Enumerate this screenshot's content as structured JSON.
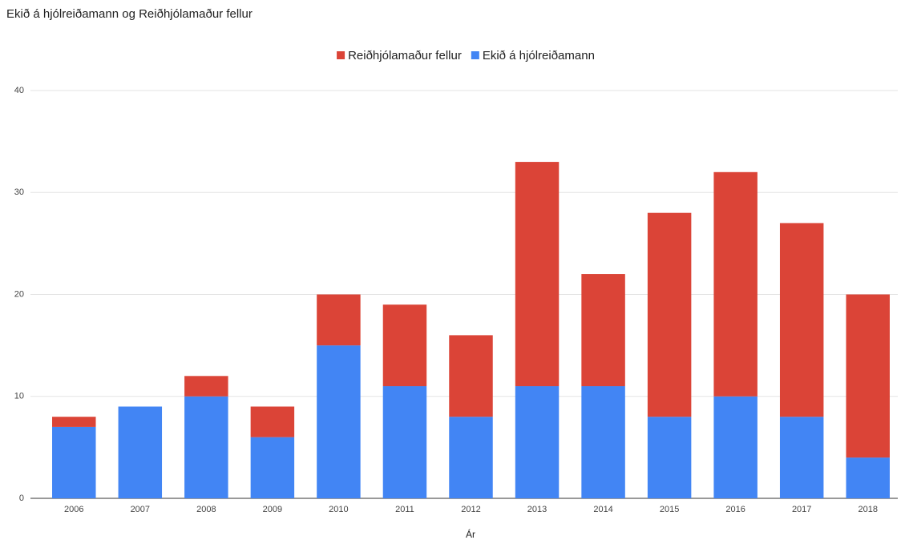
{
  "chart_data": {
    "type": "stacked_bar",
    "title": "Ekið á hjólreiðamann og Reiðhjólamaður fellur",
    "x_label": "Ár",
    "categories": [
      "2006",
      "2007",
      "2008",
      "2009",
      "2010",
      "2011",
      "2012",
      "2013",
      "2014",
      "2015",
      "2016",
      "2017",
      "2018"
    ],
    "series": [
      {
        "name": "Reiðhjólamaður fellur",
        "color": "#db4437",
        "values": [
          1,
          0,
          2,
          3,
          5,
          8,
          8,
          22,
          11,
          20,
          22,
          19,
          16
        ]
      },
      {
        "name": "Ekið á hjólreiðamann",
        "color": "#4285f4",
        "values": [
          7,
          9,
          10,
          6,
          15,
          11,
          8,
          11,
          11,
          8,
          10,
          8,
          4
        ]
      }
    ],
    "ylim": [
      0,
      40
    ],
    "yticks": [
      0,
      10,
      20,
      30,
      40
    ],
    "grid": true,
    "legend": "top"
  }
}
